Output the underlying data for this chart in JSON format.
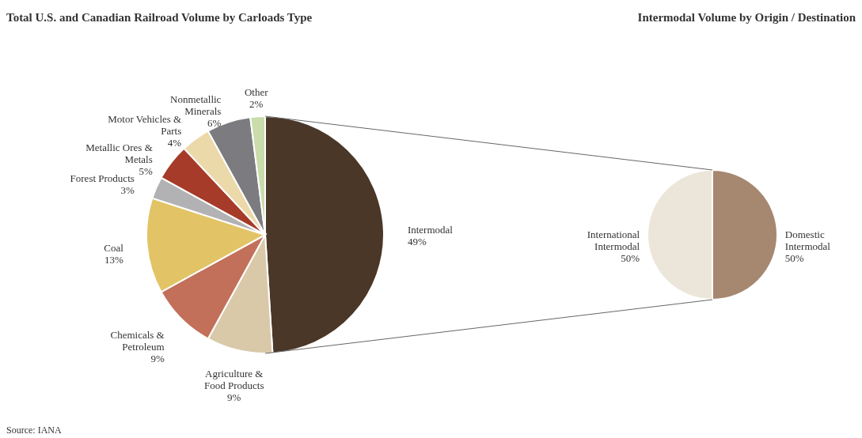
{
  "chart_data": [
    {
      "type": "pie",
      "title": "Total U.S. and Canadian Railroad Volume by Carloads Type",
      "categories": [
        "Intermodal",
        "Agriculture & Food Products",
        "Chemicals & Petroleum",
        "Coal",
        "Forest Products",
        "Metallic Ores & Metals",
        "Motor Vehicles & Parts",
        "Nonmetallic Minerals",
        "Other"
      ],
      "values": [
        49,
        9,
        9,
        13,
        3,
        5,
        4,
        6,
        2
      ],
      "value_labels": [
        "49%",
        "9%",
        "9%",
        "13%",
        "3%",
        "5%",
        "4%",
        "6%",
        "2%"
      ],
      "colors": [
        "#4a3728",
        "#d9c9a9",
        "#c2705a",
        "#e2c466",
        "#b2b2b4",
        "#a63b29",
        "#ecd9aa",
        "#7b7b80",
        "#c9dcaa"
      ],
      "annotations": [
        "Source:     IANA"
      ]
    },
    {
      "type": "pie",
      "title": "Intermodal Volume by Origin / Destination",
      "categories": [
        "Domestic Intermodal",
        "International Intermodal"
      ],
      "values": [
        50,
        50
      ],
      "value_labels": [
        "50%",
        "50%"
      ],
      "colors": [
        "#a68770",
        "#ece6da"
      ]
    }
  ]
}
